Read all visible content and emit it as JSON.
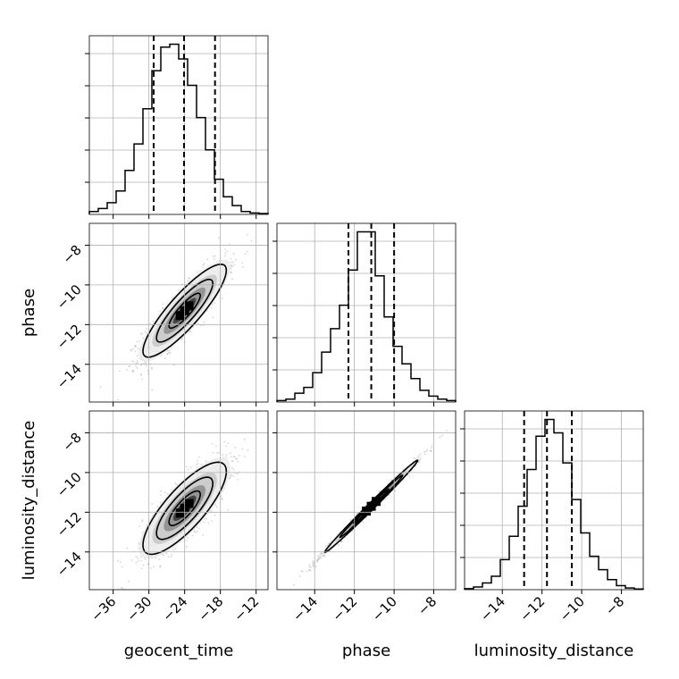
{
  "chart_data": {
    "type": "corner",
    "parameters": [
      "geocent_time",
      "phase",
      "luminosity_distance"
    ],
    "axis_labels": {
      "x": [
        "geocent_time",
        "phase",
        "luminosity_distance"
      ],
      "y": [
        "",
        "phase",
        "luminosity_distance"
      ]
    },
    "ranges": {
      "geocent_time": [
        -40,
        -10
      ],
      "phase": [
        -15.9,
        -6.9
      ],
      "luminosity_distance": [
        -15.9,
        -6.9
      ]
    },
    "ticks": {
      "geocent_time": [
        -36,
        -30,
        -24,
        -18,
        -12
      ],
      "phase": [
        -14,
        -12,
        -10,
        -8
      ],
      "luminosity_distance": [
        -14,
        -12,
        -10,
        -8
      ]
    },
    "tick_labels": {
      "geocent_time": [
        "−36",
        "−30",
        "−24",
        "−18",
        "−12"
      ],
      "phase": [
        "−14",
        "−12",
        "−10",
        "−8"
      ],
      "luminosity_distance": [
        "−14",
        "−12",
        "−10",
        "−8"
      ]
    },
    "grid": true,
    "histograms": [
      {
        "parameter": "geocent_time",
        "bin_edges": [
          -40,
          -38.5,
          -37,
          -35.5,
          -34,
          -32.5,
          -31,
          -29.5,
          -28,
          -26.5,
          -25,
          -23.5,
          -22,
          -20.5,
          -19,
          -17.5,
          -16,
          -14.5,
          -13,
          -11.5,
          -10
        ],
        "counts": [
          1,
          2,
          4,
          8,
          15,
          24,
          36,
          49,
          57,
          58,
          53,
          44,
          33,
          22,
          12,
          6,
          3,
          1,
          0.5,
          0.3
        ],
        "quantiles": [
          -29.2,
          -24.1,
          -18.9
        ]
      },
      {
        "parameter": "phase",
        "bin_edges": [
          -15.9,
          -15.45,
          -15.0,
          -14.55,
          -14.1,
          -13.65,
          -13.2,
          -12.75,
          -12.3,
          -11.85,
          -11.4,
          -10.95,
          -10.5,
          -10.05,
          -9.6,
          -9.15,
          -8.7,
          -8.25,
          -7.8,
          -7.35,
          -6.9
        ],
        "counts": [
          0.5,
          1,
          3,
          5,
          10,
          17,
          25,
          33,
          45,
          58,
          58,
          43,
          29,
          19,
          13,
          8,
          4,
          2,
          1,
          0.5
        ],
        "quantiles": [
          -12.3,
          -11.15,
          -10.0
        ]
      },
      {
        "parameter": "luminosity_distance",
        "bin_edges": [
          -15.9,
          -15.45,
          -15.0,
          -14.55,
          -14.1,
          -13.65,
          -13.2,
          -12.75,
          -12.3,
          -11.85,
          -11.4,
          -10.95,
          -10.5,
          -10.05,
          -9.6,
          -9.15,
          -8.7,
          -8.25,
          -7.8,
          -7.35,
          -6.9
        ],
        "counts": [
          0.3,
          0.8,
          2,
          4,
          9,
          16,
          25,
          36,
          46,
          51,
          47,
          38,
          27,
          17,
          10,
          6,
          3,
          1.2,
          0.5,
          0.2
        ],
        "quantiles": [
          -12.9,
          -11.75,
          -10.5
        ]
      }
    ],
    "pair_plots": [
      {
        "x": "geocent_time",
        "y": "phase",
        "mean": [
          -24,
          -11.3
        ],
        "sigma": [
          3.5,
          1.17
        ],
        "rho": 0.87
      },
      {
        "x": "geocent_time",
        "y": "luminosity_distance",
        "mean": [
          -24,
          -11.8
        ],
        "sigma": [
          3.5,
          1.16
        ],
        "rho": 0.8
      },
      {
        "x": "phase",
        "y": "luminosity_distance",
        "mean": [
          -11.15,
          -11.7
        ],
        "sigma": [
          1.17,
          1.16
        ],
        "rho": 0.995
      }
    ],
    "colors": {
      "line": "#000000",
      "quantile_line": "#000000",
      "grid": "#b0b0b0",
      "points": "#888888",
      "density_dark": "#000000",
      "density_light": "#f0f0f0"
    }
  }
}
